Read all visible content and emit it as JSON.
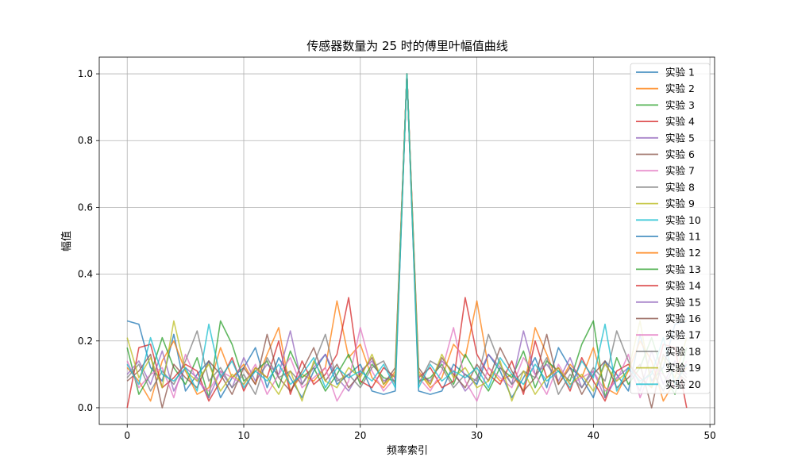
{
  "chart_data": {
    "type": "line",
    "title": "传感器数量为 25 时的傅里叶幅值曲线",
    "xlabel": "频率索引",
    "ylabel": "幅值",
    "xlim": [
      -2.4,
      50.4
    ],
    "ylim": [
      -0.05,
      1.05
    ],
    "xticks": [
      0,
      10,
      20,
      30,
      40,
      50
    ],
    "yticks": [
      0.0,
      0.2,
      0.4,
      0.6,
      0.8,
      1.0
    ],
    "xtick_labels": [
      "0",
      "10",
      "20",
      "30",
      "40",
      "50"
    ],
    "ytick_labels": [
      "0.0",
      "0.2",
      "0.4",
      "0.6",
      "0.8",
      "1.0"
    ],
    "grid": true,
    "legend_position": "top-right",
    "colors": [
      "#1f77b4",
      "#ff7f0e",
      "#2ca02c",
      "#d62728",
      "#9467bd",
      "#8c564b",
      "#e377c2",
      "#7f7f7f",
      "#bcbd22",
      "#17becf",
      "#1f77b4",
      "#ff7f0e",
      "#2ca02c",
      "#d62728",
      "#9467bd",
      "#8c564b",
      "#e377c2",
      "#7f7f7f",
      "#bcbd22",
      "#17becf"
    ],
    "x": [
      0,
      1,
      2,
      3,
      4,
      5,
      6,
      7,
      8,
      9,
      10,
      11,
      12,
      13,
      14,
      15,
      16,
      17,
      18,
      19,
      20,
      21,
      22,
      23,
      24,
      25,
      26,
      27,
      28,
      29,
      30,
      31,
      32,
      33,
      34,
      35,
      36,
      37,
      38,
      39,
      40,
      41,
      42,
      43,
      44,
      45,
      46,
      47,
      48
    ],
    "series": [
      {
        "name": "实验 1",
        "values": [
          0.26,
          0.25,
          0.12,
          0.08,
          0.22,
          0.05,
          0.1,
          0.14,
          0.03,
          0.09,
          0.12,
          0.18,
          0.06,
          0.15,
          0.09,
          0.03,
          0.11,
          0.16,
          0.07,
          0.1,
          0.13,
          0.05,
          0.04,
          0.05,
          1.0,
          0.05,
          0.04,
          0.05,
          0.13,
          0.1,
          0.07,
          0.16,
          0.11,
          0.03,
          0.09,
          0.15,
          0.06,
          0.18,
          0.12,
          0.09,
          0.03,
          0.14,
          0.1,
          0.05,
          0.22,
          0.08,
          0.12,
          0.25,
          0.26
        ]
      },
      {
        "name": "实验 2",
        "values": [
          0.12,
          0.08,
          0.02,
          0.14,
          0.2,
          0.11,
          0.04,
          0.06,
          0.18,
          0.09,
          0.13,
          0.07,
          0.16,
          0.24,
          0.05,
          0.1,
          0.08,
          0.12,
          0.32,
          0.15,
          0.19,
          0.09,
          0.06,
          0.11,
          1.0,
          0.11,
          0.06,
          0.09,
          0.19,
          0.15,
          0.32,
          0.12,
          0.08,
          0.1,
          0.05,
          0.24,
          0.16,
          0.07,
          0.13,
          0.09,
          0.18,
          0.06,
          0.04,
          0.11,
          0.2,
          0.14,
          0.02,
          0.08,
          0.12
        ]
      },
      {
        "name": "实验 3",
        "values": [
          0.18,
          0.04,
          0.1,
          0.21,
          0.12,
          0.07,
          0.15,
          0.03,
          0.26,
          0.19,
          0.08,
          0.11,
          0.14,
          0.06,
          0.17,
          0.09,
          0.12,
          0.05,
          0.1,
          0.16,
          0.07,
          0.13,
          0.09,
          0.08,
          1.0,
          0.08,
          0.09,
          0.13,
          0.07,
          0.16,
          0.1,
          0.05,
          0.12,
          0.09,
          0.17,
          0.06,
          0.14,
          0.11,
          0.08,
          0.19,
          0.26,
          0.03,
          0.15,
          0.07,
          0.12,
          0.21,
          0.1,
          0.04,
          0.18
        ]
      },
      {
        "name": "实验 4",
        "values": [
          0.0,
          0.18,
          0.19,
          0.06,
          0.09,
          0.13,
          0.11,
          0.02,
          0.08,
          0.15,
          0.05,
          0.12,
          0.09,
          0.2,
          0.04,
          0.14,
          0.07,
          0.1,
          0.16,
          0.33,
          0.08,
          0.06,
          0.12,
          0.09,
          1.0,
          0.09,
          0.12,
          0.06,
          0.08,
          0.33,
          0.16,
          0.1,
          0.07,
          0.14,
          0.04,
          0.2,
          0.09,
          0.12,
          0.05,
          0.15,
          0.08,
          0.02,
          0.11,
          0.13,
          0.09,
          0.06,
          0.19,
          0.18,
          0.0
        ]
      },
      {
        "name": "实验 5",
        "values": [
          0.1,
          0.14,
          0.07,
          0.17,
          0.05,
          0.12,
          0.09,
          0.03,
          0.11,
          0.06,
          0.15,
          0.08,
          0.13,
          0.1,
          0.23,
          0.07,
          0.12,
          0.16,
          0.09,
          0.05,
          0.11,
          0.14,
          0.08,
          0.1,
          1.0,
          0.1,
          0.08,
          0.14,
          0.11,
          0.05,
          0.09,
          0.16,
          0.12,
          0.07,
          0.23,
          0.1,
          0.13,
          0.08,
          0.15,
          0.06,
          0.11,
          0.03,
          0.09,
          0.12,
          0.05,
          0.17,
          0.07,
          0.14,
          0.1
        ]
      },
      {
        "name": "实验 6",
        "values": [
          0.08,
          0.11,
          0.16,
          0.0,
          0.13,
          0.09,
          0.06,
          0.14,
          0.1,
          0.04,
          0.12,
          0.07,
          0.22,
          0.09,
          0.05,
          0.11,
          0.18,
          0.08,
          0.13,
          0.06,
          0.1,
          0.15,
          0.07,
          0.12,
          1.0,
          0.12,
          0.07,
          0.15,
          0.1,
          0.06,
          0.13,
          0.08,
          0.18,
          0.11,
          0.05,
          0.09,
          0.22,
          0.07,
          0.12,
          0.04,
          0.1,
          0.14,
          0.06,
          0.09,
          0.13,
          0.0,
          0.16,
          0.11,
          0.08
        ]
      },
      {
        "name": "实验 7",
        "values": [
          0.14,
          0.06,
          0.1,
          0.12,
          0.03,
          0.16,
          0.08,
          0.05,
          0.11,
          0.09,
          0.07,
          0.13,
          0.04,
          0.1,
          0.15,
          0.06,
          0.09,
          0.12,
          0.02,
          0.08,
          0.24,
          0.11,
          0.05,
          0.09,
          1.0,
          0.09,
          0.05,
          0.11,
          0.24,
          0.08,
          0.02,
          0.12,
          0.09,
          0.06,
          0.15,
          0.1,
          0.04,
          0.13,
          0.07,
          0.09,
          0.11,
          0.05,
          0.08,
          0.16,
          0.03,
          0.12,
          0.1,
          0.06,
          0.14
        ]
      },
      {
        "name": "实验 8",
        "values": [
          0.09,
          0.13,
          0.05,
          0.11,
          0.07,
          0.14,
          0.23,
          0.08,
          0.12,
          0.06,
          0.1,
          0.04,
          0.15,
          0.09,
          0.11,
          0.07,
          0.13,
          0.22,
          0.08,
          0.1,
          0.06,
          0.12,
          0.14,
          0.07,
          1.0,
          0.07,
          0.14,
          0.12,
          0.06,
          0.1,
          0.08,
          0.22,
          0.13,
          0.07,
          0.11,
          0.09,
          0.15,
          0.04,
          0.1,
          0.06,
          0.12,
          0.08,
          0.23,
          0.14,
          0.07,
          0.11,
          0.05,
          0.13,
          0.09
        ]
      },
      {
        "name": "实验 9",
        "values": [
          0.21,
          0.09,
          0.15,
          0.06,
          0.26,
          0.11,
          0.08,
          0.13,
          0.05,
          0.1,
          0.07,
          0.12,
          0.09,
          0.04,
          0.11,
          0.02,
          0.14,
          0.08,
          0.06,
          0.12,
          0.09,
          0.16,
          0.07,
          0.1,
          1.0,
          0.1,
          0.07,
          0.16,
          0.09,
          0.12,
          0.06,
          0.08,
          0.14,
          0.02,
          0.11,
          0.04,
          0.09,
          0.12,
          0.07,
          0.1,
          0.05,
          0.13,
          0.08,
          0.11,
          0.26,
          0.06,
          0.15,
          0.09,
          0.21
        ]
      },
      {
        "name": "实验 10",
        "values": [
          0.13,
          0.07,
          0.21,
          0.1,
          0.08,
          0.12,
          0.05,
          0.25,
          0.09,
          0.14,
          0.06,
          0.11,
          0.08,
          0.13,
          0.07,
          0.1,
          0.15,
          0.06,
          0.12,
          0.09,
          0.11,
          0.08,
          0.13,
          0.06,
          1.0,
          0.06,
          0.13,
          0.08,
          0.11,
          0.09,
          0.12,
          0.06,
          0.15,
          0.1,
          0.07,
          0.13,
          0.08,
          0.11,
          0.06,
          0.14,
          0.09,
          0.25,
          0.05,
          0.12,
          0.08,
          0.1,
          0.21,
          0.07,
          0.13
        ]
      }
    ],
    "legend_only": [
      "实验 11",
      "实验 12",
      "实验 13",
      "实验 14",
      "实验 15",
      "实验 16",
      "实验 17",
      "实验 18",
      "实验 19",
      "实验 20"
    ]
  }
}
